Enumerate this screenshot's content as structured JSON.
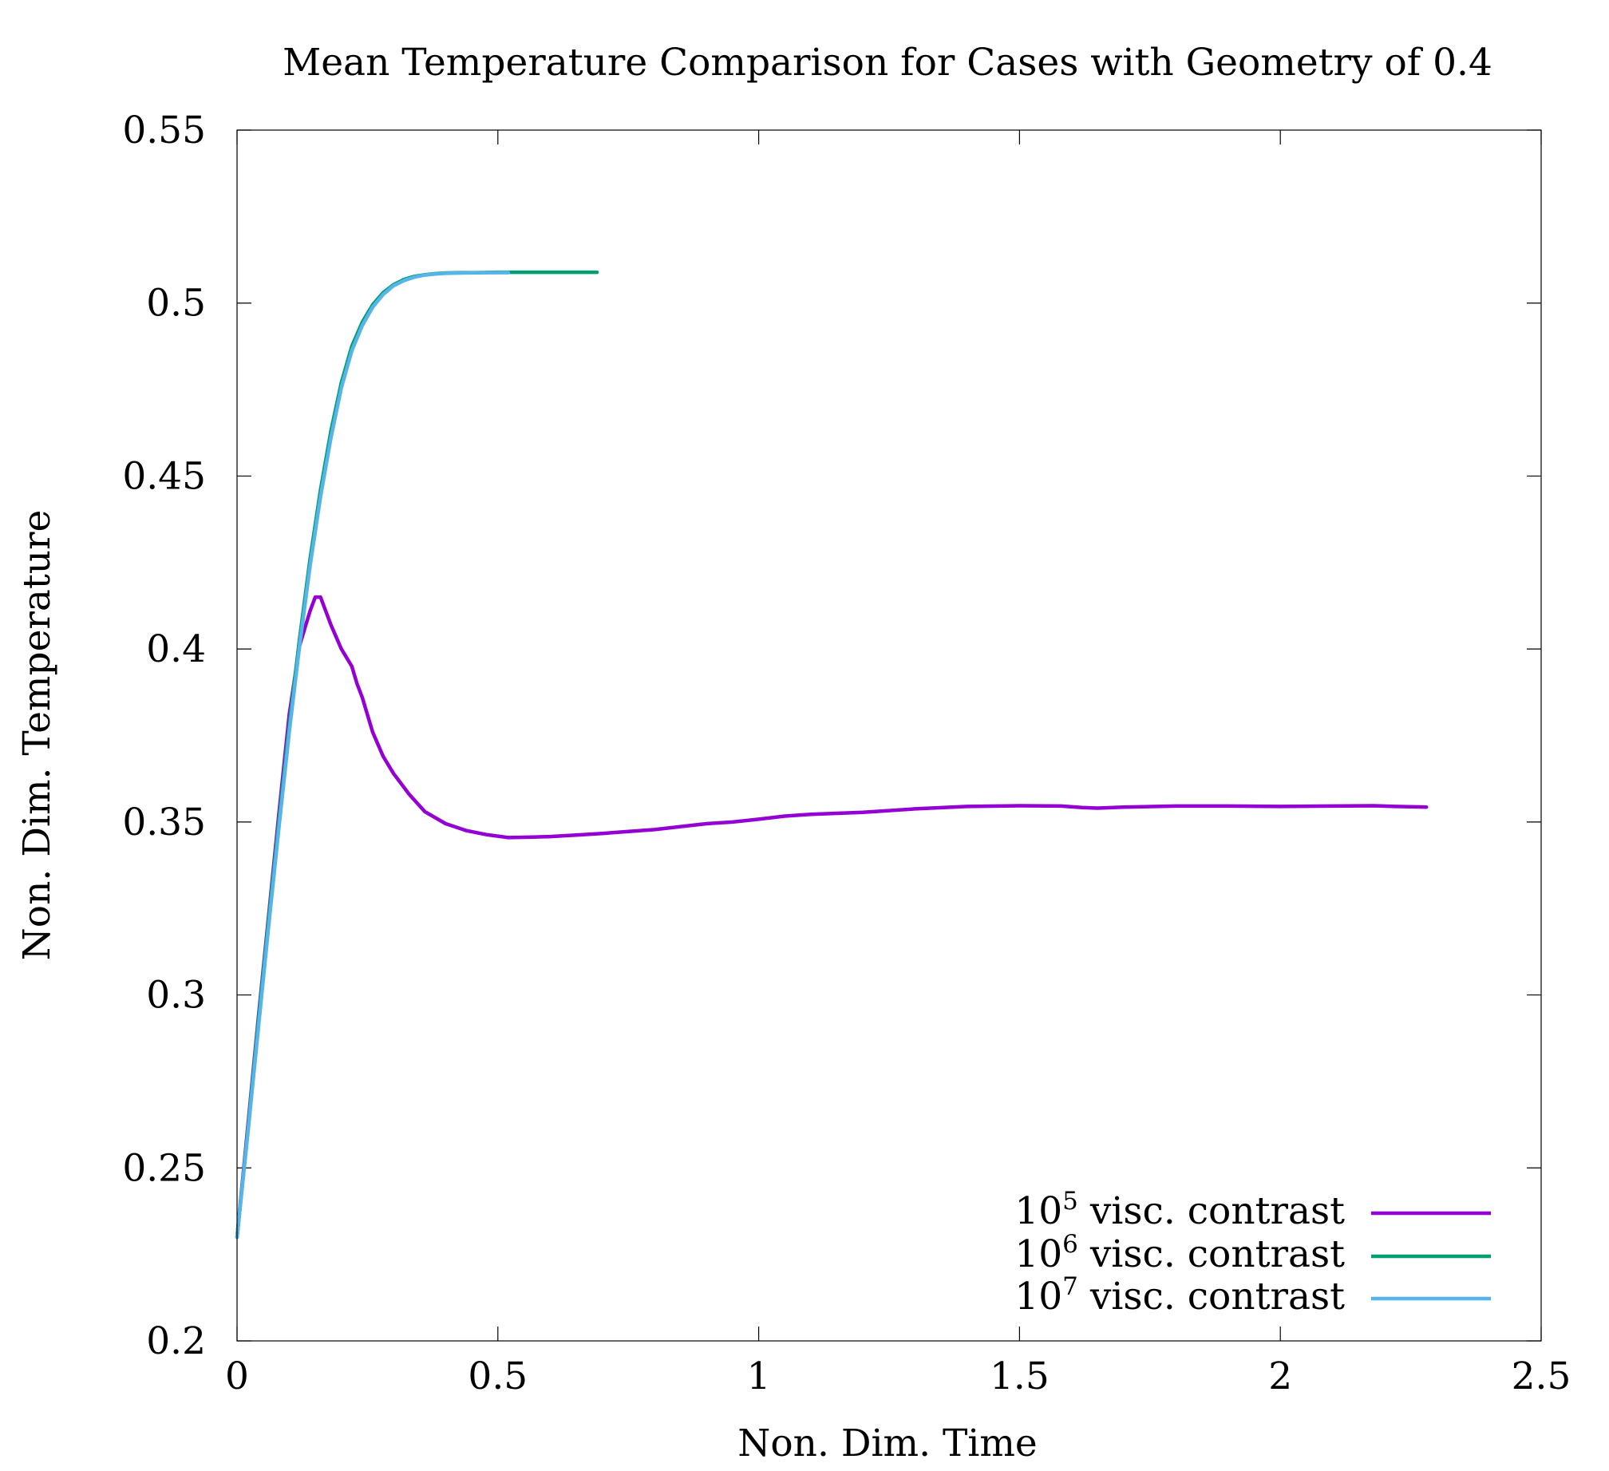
{
  "chart_data": {
    "type": "line",
    "title": "Mean Temperature Comparison for Cases with Geometry of 0.4",
    "xlabel": "Non. Dim. Time",
    "ylabel": "Non. Dim. Temperature",
    "xlim": [
      0,
      2.5
    ],
    "ylim": [
      0.2,
      0.55
    ],
    "xticks": [
      0,
      0.5,
      1,
      1.5,
      2,
      2.5
    ],
    "xtick_labels": [
      "0",
      "0.5",
      "1",
      "1.5",
      "2",
      "2.5"
    ],
    "yticks": [
      0.2,
      0.25,
      0.3,
      0.35,
      0.4,
      0.45,
      0.5,
      0.55
    ],
    "ytick_labels": [
      "0.2",
      "0.25",
      "0.3",
      "0.35",
      "0.4",
      "0.45",
      "0.5",
      "0.55"
    ],
    "grid": false,
    "legend_position": "bottom-right",
    "series": [
      {
        "name": "10^5 visc. contrast",
        "legend_base": "10",
        "legend_exp": "5",
        "legend_rest": " visc. contrast",
        "color": "#9400d3",
        "x": [
          0,
          0.02,
          0.04,
          0.06,
          0.08,
          0.1,
          0.12,
          0.14,
          0.15,
          0.16,
          0.17,
          0.18,
          0.2,
          0.22,
          0.23,
          0.24,
          0.26,
          0.28,
          0.3,
          0.33,
          0.36,
          0.4,
          0.44,
          0.48,
          0.52,
          0.56,
          0.6,
          0.65,
          0.7,
          0.8,
          0.9,
          0.95,
          1.0,
          1.05,
          1.1,
          1.2,
          1.3,
          1.4,
          1.5,
          1.58,
          1.62,
          1.65,
          1.7,
          1.8,
          1.9,
          2.0,
          2.1,
          2.18,
          2.22,
          2.28
        ],
        "y": [
          0.23,
          0.261,
          0.292,
          0.322,
          0.352,
          0.381,
          0.401,
          0.411,
          0.415,
          0.415,
          0.411,
          0.407,
          0.4,
          0.395,
          0.39,
          0.386,
          0.376,
          0.369,
          0.364,
          0.358,
          0.353,
          0.3495,
          0.3475,
          0.3463,
          0.3455,
          0.3456,
          0.3458,
          0.3462,
          0.3467,
          0.3478,
          0.3495,
          0.35,
          0.3508,
          0.3517,
          0.3522,
          0.3528,
          0.3538,
          0.3545,
          0.3547,
          0.3546,
          0.3542,
          0.354,
          0.3543,
          0.3546,
          0.3546,
          0.3545,
          0.3546,
          0.3547,
          0.3545,
          0.3543
        ]
      },
      {
        "name": "10^6 visc. contrast",
        "legend_base": "10",
        "legend_exp": "6",
        "legend_rest": " visc. contrast",
        "color": "#009e73",
        "x": [
          0,
          0.02,
          0.04,
          0.06,
          0.08,
          0.1,
          0.12,
          0.14,
          0.16,
          0.18,
          0.2,
          0.22,
          0.24,
          0.26,
          0.28,
          0.3,
          0.32,
          0.34,
          0.36,
          0.38,
          0.4,
          0.43,
          0.46,
          0.5,
          0.55,
          0.6,
          0.65,
          0.69
        ],
        "y": [
          0.23,
          0.26,
          0.291,
          0.321,
          0.35,
          0.378,
          0.403,
          0.426,
          0.446,
          0.463,
          0.477,
          0.4875,
          0.4945,
          0.4995,
          0.503,
          0.5053,
          0.5068,
          0.5077,
          0.5082,
          0.5085,
          0.5087,
          0.5088,
          0.5088,
          0.5089,
          0.5089,
          0.5089,
          0.5089,
          0.5089
        ]
      },
      {
        "name": "10^7 visc. contrast",
        "legend_base": "10",
        "legend_exp": "7",
        "legend_rest": " visc. contrast",
        "color": "#56b4e9",
        "x": [
          0,
          0.02,
          0.04,
          0.06,
          0.08,
          0.1,
          0.12,
          0.14,
          0.16,
          0.18,
          0.2,
          0.22,
          0.24,
          0.26,
          0.28,
          0.3,
          0.32,
          0.34,
          0.36,
          0.38,
          0.4,
          0.43,
          0.46,
          0.5,
          0.52
        ],
        "y": [
          0.23,
          0.259,
          0.289,
          0.319,
          0.348,
          0.376,
          0.401,
          0.424,
          0.444,
          0.461,
          0.4755,
          0.4862,
          0.4935,
          0.4988,
          0.5025,
          0.505,
          0.5065,
          0.5075,
          0.5081,
          0.5084,
          0.5086,
          0.5087,
          0.5088,
          0.5088,
          0.5088
        ]
      }
    ]
  }
}
